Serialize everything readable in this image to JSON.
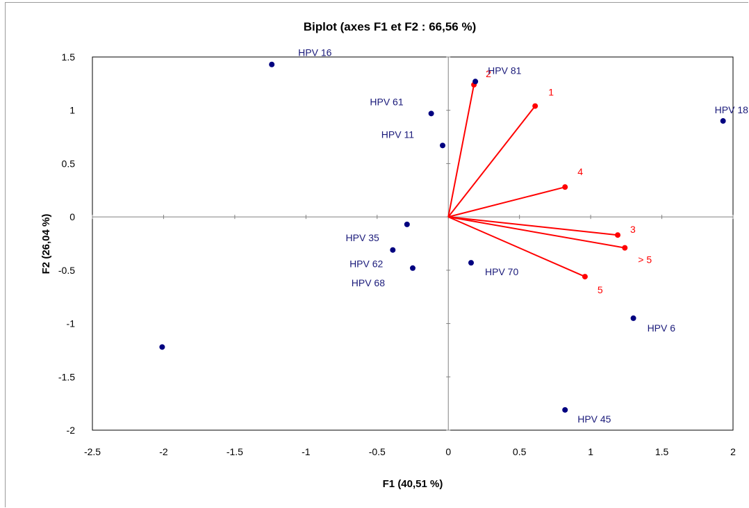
{
  "chart_data": {
    "type": "scatter",
    "title": "Biplot (axes F1 et F2 : 66,56 %)",
    "xlabel": "F1 (40,51 %)",
    "ylabel": "F2 (26,04 %)",
    "xlim": [
      -2.5,
      2
    ],
    "ylim": [
      -2,
      1.5
    ],
    "xticks": [
      "-2.5",
      "-2",
      "-1.5",
      "-1",
      "-0.5",
      "0",
      "0.5",
      "1",
      "1.5",
      "2"
    ],
    "yticks": [
      "1.5",
      "1",
      "0.5",
      "0",
      "-0.5",
      "-1",
      "-1.5",
      "-2"
    ],
    "grid": false,
    "colors": {
      "observations": "#000080",
      "variables": "#ff0000",
      "axes": "#808080"
    },
    "observations": [
      {
        "label": "HPV 16",
        "x": -1.24,
        "y": 1.43
      },
      {
        "label": "HPV 81",
        "x": 0.19,
        "y": 1.27
      },
      {
        "label": "HPV 61",
        "x": -0.12,
        "y": 0.97
      },
      {
        "label": "HPV 11",
        "x": -0.04,
        "y": 0.67
      },
      {
        "label": "HPV 18",
        "x": 1.93,
        "y": 0.9
      },
      {
        "label": "HPV 35",
        "x": -0.29,
        "y": -0.07
      },
      {
        "label": "HPV 62",
        "x": -0.39,
        "y": -0.31
      },
      {
        "label": "HPV 68",
        "x": -0.25,
        "y": -0.48
      },
      {
        "label": "HPV 70",
        "x": 0.16,
        "y": -0.43
      },
      {
        "label": "HPV 6",
        "x": 1.3,
        "y": -0.95
      },
      {
        "label": "HPV 45",
        "x": 0.82,
        "y": -1.81
      },
      {
        "label": "",
        "x": -2.01,
        "y": -1.22
      }
    ],
    "variables": [
      {
        "label": "2",
        "x": 0.18,
        "y": 1.24
      },
      {
        "label": "1",
        "x": 0.61,
        "y": 1.04
      },
      {
        "label": "4",
        "x": 0.82,
        "y": 0.28
      },
      {
        "label": "3",
        "x": 1.19,
        "y": -0.17
      },
      {
        "label": "> 5",
        "x": 1.24,
        "y": -0.29
      },
      {
        "label": "5",
        "x": 0.96,
        "y": -0.56
      }
    ]
  }
}
